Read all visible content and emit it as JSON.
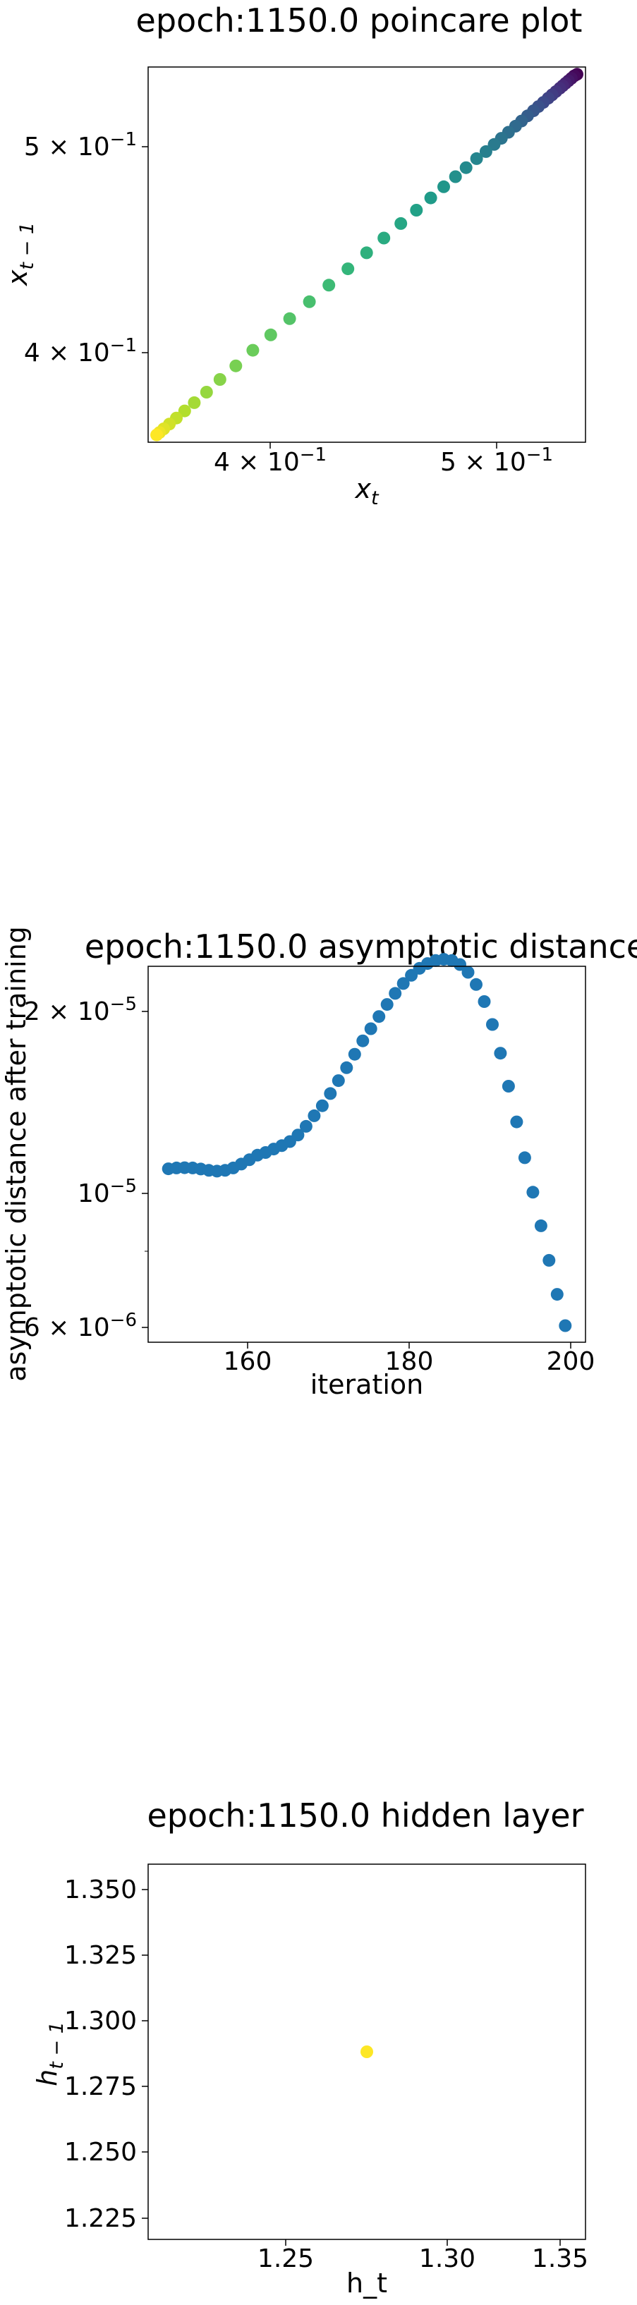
{
  "chart_data": [
    {
      "type": "scatter",
      "title": "epoch:1150.0 poincare plot",
      "xlabel": "x_t",
      "ylabel": "x_{t-1}",
      "scale": "log",
      "colormap": "viridis",
      "xlim": [
        0.365,
        0.555
      ],
      "ylim": [
        0.365,
        0.555
      ],
      "x_ticks": [
        "4 × 10^-1",
        "5 × 10^-1"
      ],
      "y_ticks": [
        "4 × 10^-1",
        "5 × 10^-1"
      ],
      "points": [
        [
          0.5505,
          0.5505
        ],
        [
          0.549,
          0.5495
        ],
        [
          0.5475,
          0.548
        ],
        [
          0.546,
          0.5465
        ],
        [
          0.5445,
          0.545
        ],
        [
          0.543,
          0.5435
        ],
        [
          0.5415,
          0.542
        ],
        [
          0.5395,
          0.54
        ],
        [
          0.5375,
          0.538
        ],
        [
          0.5355,
          0.536
        ],
        [
          0.533,
          0.5335
        ],
        [
          0.5305,
          0.531
        ],
        [
          0.528,
          0.5285
        ],
        [
          0.525,
          0.5255
        ],
        [
          0.522,
          0.5225
        ],
        [
          0.519,
          0.5195
        ],
        [
          0.5155,
          0.516
        ],
        [
          0.512,
          0.5125
        ],
        [
          0.5085,
          0.509
        ],
        [
          0.5045,
          0.505
        ],
        [
          0.5,
          0.501
        ],
        [
          0.495,
          0.496
        ],
        [
          0.49,
          0.491
        ],
        [
          0.4845,
          0.4855
        ],
        [
          0.4785,
          0.4795
        ],
        [
          0.472,
          0.473
        ],
        [
          0.465,
          0.466
        ],
        [
          0.4575,
          0.4585
        ],
        [
          0.45,
          0.451
        ],
        [
          0.442,
          0.443
        ],
        [
          0.434,
          0.435
        ],
        [
          0.426,
          0.427
        ],
        [
          0.418,
          0.419
        ],
        [
          0.4105,
          0.4115
        ],
        [
          0.4035,
          0.4045
        ],
        [
          0.397,
          0.3975
        ],
        [
          0.391,
          0.3915
        ],
        [
          0.386,
          0.386
        ],
        [
          0.3815,
          0.3815
        ],
        [
          0.378,
          0.378
        ],
        [
          0.375,
          0.375
        ],
        [
          0.3725,
          0.3725
        ],
        [
          0.3705,
          0.3705
        ],
        [
          0.369,
          0.369
        ],
        [
          0.368,
          0.368
        ]
      ]
    },
    {
      "type": "scatter",
      "title": "epoch:1150.0 asymptotic distance",
      "xlabel": "iteration",
      "ylabel": "asymptotic distance after training",
      "scale_y": "log",
      "color": "#1f77b4",
      "xlim": [
        147.5,
        201.5
      ],
      "ylim": [
        5.7e-06,
        2.2e-05
      ],
      "x_ticks": [
        "160",
        "180",
        "200"
      ],
      "y_ticks": [
        "2 × 10^-5",
        "10^-5",
        "6 × 10^-6"
      ],
      "x": [
        150,
        151,
        152,
        153,
        154,
        155,
        156,
        157,
        158,
        159,
        160,
        161,
        162,
        163,
        164,
        165,
        166,
        167,
        168,
        169,
        170,
        171,
        172,
        173,
        174,
        175,
        176,
        177,
        178,
        179,
        180,
        181,
        182,
        183,
        184,
        185,
        186,
        187,
        188,
        189,
        190,
        191,
        192,
        193,
        194,
        195,
        196,
        197,
        198,
        199
      ],
      "y": [
        1.063e-05,
        1.066e-05,
        1.067e-05,
        1.066e-05,
        1.062e-05,
        1.057e-05,
        1.054e-05,
        1.057e-05,
        1.066e-05,
        1.081e-05,
        1.098e-05,
        1.116e-05,
        1.127e-05,
        1.141e-05,
        1.155e-05,
        1.172e-05,
        1.2e-05,
        1.238e-05,
        1.286e-05,
        1.333e-05,
        1.393e-05,
        1.459e-05,
        1.528e-05,
        1.604e-05,
        1.683e-05,
        1.758e-05,
        1.837e-05,
        1.918e-05,
        1.996e-05,
        2.068e-05,
        2.13e-05,
        2.184e-05,
        2.222e-05,
        2.246e-05,
        2.256e-05,
        2.246e-05,
        2.214e-05,
        2.153e-05,
        2.061e-05,
        1.938e-05,
        1.785e-05,
        1.61e-05,
        1.43e-05,
        1.258e-05,
        1.106e-05,
        9.77e-06,
        8.66e-06,
        7.65e-06,
        6.77e-06,
        6.05e-06
      ]
    },
    {
      "type": "scatter",
      "title": "epoch:1150.0 hidden layer",
      "xlabel": "h_t",
      "ylabel": "h_{t-1}",
      "color": "#fde725",
      "xlim": [
        1.2205,
        1.3555
      ],
      "ylim": [
        1.2175,
        1.3585
      ],
      "x_ticks": [
        "1.25",
        "1.30",
        "1.35"
      ],
      "y_ticks": [
        "1.350",
        "1.325",
        "1.300",
        "1.275",
        "1.250",
        "1.225"
      ],
      "points": [
        [
          1.288,
          1.288
        ]
      ]
    }
  ]
}
